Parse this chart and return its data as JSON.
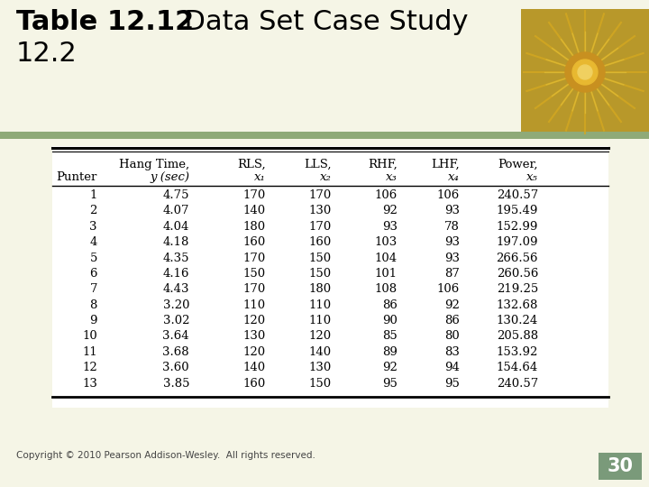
{
  "title_bold": "Table 12.12",
  "title_rest": "  Data Set Case Study",
  "title_line2": "12.2",
  "bg_color": "#f5f5e6",
  "table_bg": "#ffffff",
  "strip_color": "#8faa78",
  "col_headers_line1": [
    "",
    "Hang Time,",
    "RLS,",
    "LLS,",
    "RHF,",
    "LHF,",
    "Power,"
  ],
  "col_headers_line2": [
    "Punter",
    "y (sec)",
    "x₁",
    "x₂",
    "x₃",
    "x₄",
    "x₅"
  ],
  "col_headers_line2_italic": [
    false,
    true,
    true,
    true,
    true,
    true,
    true
  ],
  "rows": [
    [
      "1",
      "4.75",
      "170",
      "170",
      "106",
      "106",
      "240.57"
    ],
    [
      "2",
      "4.07",
      "140",
      "130",
      "92",
      "93",
      "195.49"
    ],
    [
      "3",
      "4.04",
      "180",
      "170",
      "93",
      "78",
      "152.99"
    ],
    [
      "4",
      "4.18",
      "160",
      "160",
      "103",
      "93",
      "197.09"
    ],
    [
      "5",
      "4.35",
      "170",
      "150",
      "104",
      "93",
      "266.56"
    ],
    [
      "6",
      "4.16",
      "150",
      "150",
      "101",
      "87",
      "260.56"
    ],
    [
      "7",
      "4.43",
      "170",
      "180",
      "108",
      "106",
      "219.25"
    ],
    [
      "8",
      "3.20",
      "110",
      "110",
      "86",
      "92",
      "132.68"
    ],
    [
      "9",
      "3.02",
      "120",
      "110",
      "90",
      "86",
      "130.24"
    ],
    [
      "10",
      "3.64",
      "130",
      "120",
      "85",
      "80",
      "205.88"
    ],
    [
      "11",
      "3.68",
      "120",
      "140",
      "89",
      "83",
      "153.92"
    ],
    [
      "12",
      "3.60",
      "140",
      "130",
      "92",
      "94",
      "154.64"
    ],
    [
      "13",
      "3.85",
      "160",
      "150",
      "95",
      "95",
      "240.57"
    ]
  ],
  "footer_text": "Copyright © 2010 Pearson Addison-Wesley.  All rights reserved.",
  "page_number": "30",
  "title_color": "#000000",
  "footer_color": "#444444",
  "page_num_bg": "#7a9a7a",
  "page_num_color": "#ffffff",
  "title_fontsize": 22,
  "table_fontsize": 9.5
}
